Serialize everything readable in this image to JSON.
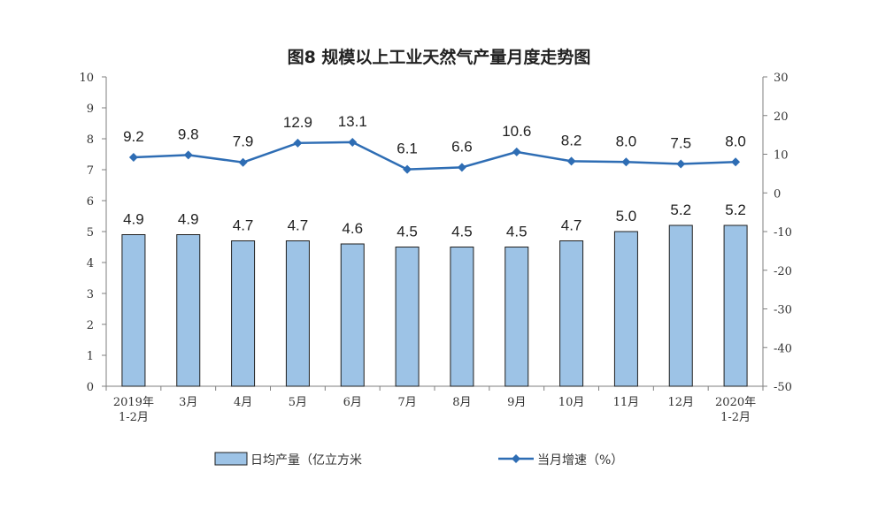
{
  "title": "图8  规模以上工业天然气产量月度走势图",
  "chart_data": {
    "type": "bar",
    "title": "图8  规模以上工业天然气产量月度走势图",
    "categories": [
      [
        "2019年",
        "1-2月"
      ],
      [
        "3月"
      ],
      [
        "4月"
      ],
      [
        "5月"
      ],
      [
        "6月"
      ],
      [
        "7月"
      ],
      [
        "8月"
      ],
      [
        "9月"
      ],
      [
        "10月"
      ],
      [
        "11月"
      ],
      [
        "12月"
      ],
      [
        "2020年",
        "1-2月"
      ]
    ],
    "series": [
      {
        "name": "日均产量（亿立方米",
        "type": "bar",
        "axis": "left",
        "values": [
          4.9,
          4.9,
          4.7,
          4.7,
          4.6,
          4.5,
          4.5,
          4.5,
          4.7,
          5.0,
          5.2,
          5.2
        ],
        "labels": [
          "4.9",
          "4.9",
          "4.7",
          "4.7",
          "4.6",
          "4.5",
          "4.5",
          "4.5",
          "4.7",
          "5.0",
          "5.2",
          "5.2"
        ],
        "color": "#9DC3E6",
        "border": "#1F1F1F"
      },
      {
        "name": "当月增速（%）",
        "type": "line",
        "axis": "right",
        "values": [
          9.2,
          9.8,
          7.9,
          12.9,
          13.1,
          6.1,
          6.6,
          10.6,
          8.2,
          8.0,
          7.5,
          8.0
        ],
        "labels": [
          "9.2",
          "9.8",
          "7.9",
          "12.9",
          "13.1",
          "6.1",
          "6.6",
          "10.6",
          "8.2",
          "8.0",
          "7.5",
          "8.0"
        ],
        "color": "#2E6DB4",
        "marker": "diamond"
      }
    ],
    "y_left": {
      "min": 0,
      "max": 10,
      "ticks": [
        "0",
        "1",
        "2",
        "3",
        "4",
        "5",
        "6",
        "7",
        "8",
        "9",
        "10"
      ]
    },
    "y_right": {
      "min": -50,
      "max": 30,
      "ticks": [
        "-50",
        "-40",
        "-30",
        "-20",
        "-10",
        "0",
        "10",
        "20",
        "30"
      ]
    },
    "grid": false,
    "legend": {
      "position": "bottom",
      "items": [
        "日均产量（亿立方米",
        "当月增速（%）"
      ]
    }
  }
}
